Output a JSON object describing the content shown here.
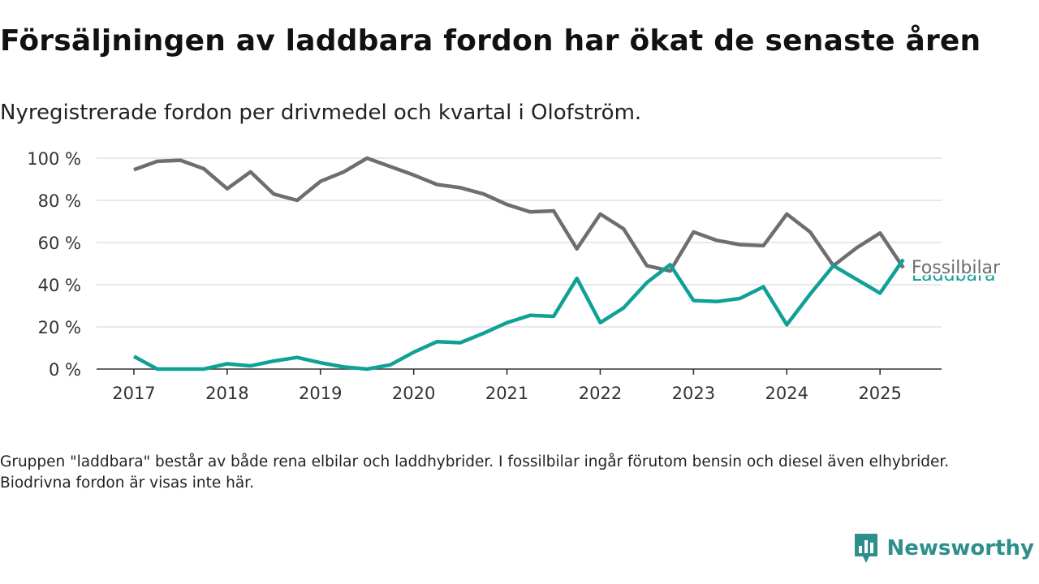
{
  "title": "Försäljningen av laddbara fordon har ökat de senaste åren",
  "subtitle": "Nyregistrerade fordon per drivmedel och kvartal i Olofström.",
  "footnote": "Gruppen \"laddbara\" består av både rena elbilar och laddhybrider. I fossilbilar ingår förutom bensin och diesel även elhybrider. Biodrivna fordon är visas inte här.",
  "brand": {
    "name": "Newsworthy",
    "icon": "newsworthy-logo-icon",
    "color": "#2e8f8a"
  },
  "chart_data": {
    "type": "line",
    "x_ticks": [
      "2017",
      "2018",
      "2019",
      "2020",
      "2021",
      "2022",
      "2023",
      "2024",
      "2025"
    ],
    "y_ticks": [
      "0 %",
      "20 %",
      "40 %",
      "60 %",
      "80 %",
      "100 %"
    ],
    "ylim": [
      0,
      100
    ],
    "xlim": [
      2016.6,
      2025.66
    ],
    "grid": true,
    "x": [
      2017.0,
      2017.25,
      2017.5,
      2017.75,
      2018.0,
      2018.25,
      2018.5,
      2018.75,
      2019.0,
      2019.25,
      2019.5,
      2019.75,
      2020.0,
      2020.25,
      2020.5,
      2020.75,
      2021.0,
      2021.25,
      2021.5,
      2021.75,
      2022.0,
      2022.25,
      2022.5,
      2022.75,
      2023.0,
      2023.25,
      2023.5,
      2023.75,
      2024.0,
      2024.25,
      2024.5,
      2024.75,
      2025.0,
      2025.25
    ],
    "series": [
      {
        "name": "Fossilbilar",
        "color": "#6e6d73",
        "values": [
          94.5,
          98.5,
          99,
          95,
          85.5,
          93.5,
          83,
          80,
          89,
          93.5,
          100,
          96,
          92,
          87.5,
          86,
          83,
          78,
          74.5,
          75,
          57,
          73.5,
          66.5,
          49,
          46.5,
          65,
          61,
          59,
          58.5,
          73.5,
          65,
          49,
          57.5,
          64.5,
          48
        ]
      },
      {
        "name": "Laddbara",
        "color": "#10a196",
        "values": [
          6,
          0,
          0,
          0,
          2.5,
          1.5,
          3.8,
          5.5,
          3,
          1,
          0,
          2,
          8,
          13,
          12.5,
          17,
          22,
          25.5,
          25,
          43,
          22,
          29,
          41,
          49.5,
          32.5,
          32,
          33.5,
          39,
          21,
          35.5,
          49,
          42.5,
          36,
          52
        ]
      }
    ]
  }
}
